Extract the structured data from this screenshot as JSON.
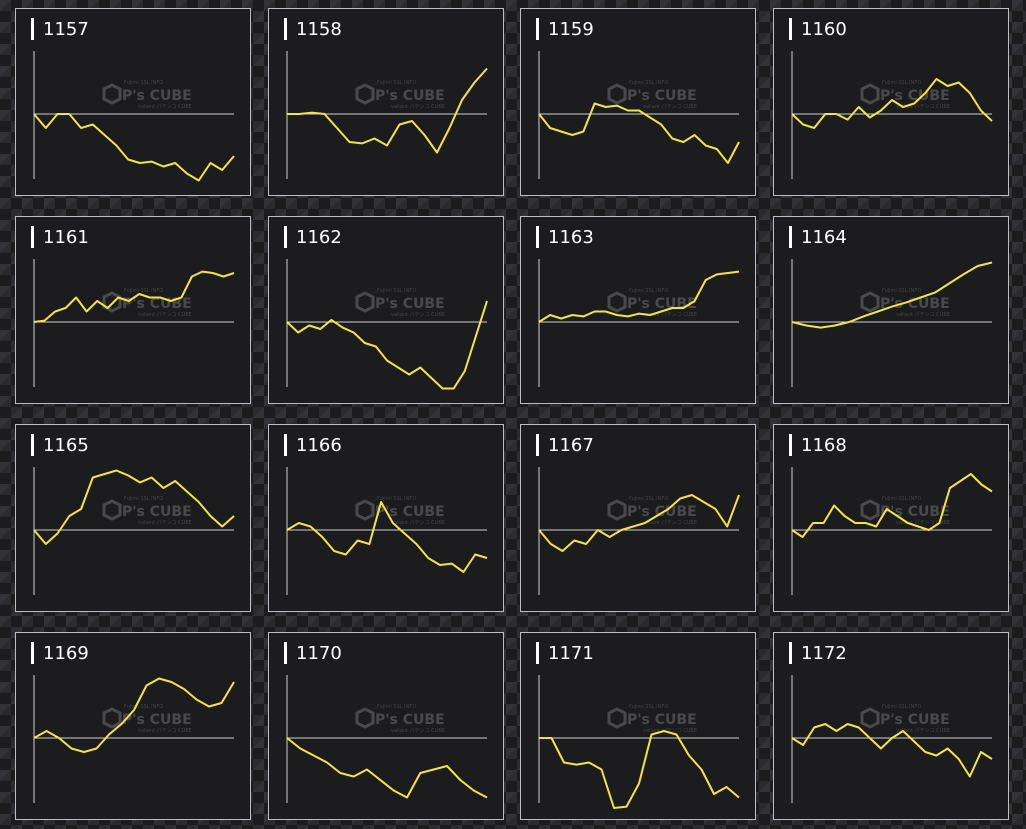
{
  "colors": {
    "line": "#f2e34d",
    "axis": "#cfcfcf",
    "panel_bg": "#1c1c1e",
    "panel_border": "#bdbdbd"
  },
  "watermark": {
    "brand": "P's CUBE",
    "tagline_top": "Fujimi SSL INFO",
    "tagline_bottom": "valiant パチンコ CUBE"
  },
  "chart_data": [
    {
      "type": "line",
      "title": "1157",
      "baseline": 0,
      "ylim": [
        -100,
        100
      ],
      "values": [
        0,
        -20,
        0,
        0,
        -20,
        -15,
        -30,
        -45,
        -65,
        -70,
        -68,
        -75,
        -70,
        -85,
        -95,
        -70,
        -80,
        -60
      ]
    },
    {
      "type": "line",
      "title": "1158",
      "baseline": 0,
      "ylim": [
        -100,
        100
      ],
      "values": [
        0,
        0,
        2,
        0,
        -20,
        -40,
        -42,
        -35,
        -45,
        -15,
        -10,
        -30,
        -55,
        -20,
        20,
        45,
        65
      ]
    },
    {
      "type": "line",
      "title": "1159",
      "baseline": 0,
      "ylim": [
        -100,
        100
      ],
      "values": [
        0,
        -20,
        -25,
        -30,
        -25,
        15,
        10,
        12,
        5,
        5,
        -5,
        -15,
        -35,
        -40,
        -30,
        -45,
        -50,
        -70,
        -40
      ]
    },
    {
      "type": "line",
      "title": "1160",
      "baseline": 0,
      "ylim": [
        -100,
        100
      ],
      "values": [
        0,
        -15,
        -20,
        0,
        0,
        -8,
        10,
        -5,
        5,
        20,
        10,
        15,
        30,
        50,
        40,
        45,
        30,
        5,
        -10
      ]
    },
    {
      "type": "line",
      "title": "1161",
      "baseline": 0,
      "ylim": [
        -100,
        100
      ],
      "values": [
        0,
        2,
        15,
        20,
        35,
        15,
        30,
        20,
        35,
        30,
        40,
        35,
        35,
        30,
        35,
        65,
        72,
        70,
        65,
        70
      ]
    },
    {
      "type": "line",
      "title": "1162",
      "baseline": 0,
      "ylim": [
        -100,
        100
      ],
      "values": [
        0,
        -15,
        -5,
        -10,
        3,
        -8,
        -15,
        -30,
        -35,
        -55,
        -65,
        -75,
        -65,
        -80,
        -95,
        -95,
        -70,
        -20,
        30
      ]
    },
    {
      "type": "line",
      "title": "1163",
      "baseline": 0,
      "ylim": [
        -100,
        100
      ],
      "values": [
        0,
        10,
        5,
        10,
        8,
        15,
        15,
        10,
        8,
        12,
        10,
        15,
        20,
        20,
        30,
        60,
        68,
        70,
        72
      ]
    },
    {
      "type": "line",
      "title": "1164",
      "baseline": 0,
      "ylim": [
        -100,
        100
      ],
      "values": [
        0,
        -5,
        -8,
        -5,
        0,
        8,
        15,
        22,
        28,
        35,
        42,
        55,
        68,
        80,
        85
      ]
    },
    {
      "type": "line",
      "title": "1165",
      "baseline": 0,
      "ylim": [
        -100,
        100
      ],
      "values": [
        0,
        -20,
        -5,
        20,
        30,
        75,
        80,
        85,
        78,
        68,
        75,
        60,
        70,
        55,
        40,
        20,
        5,
        20
      ]
    },
    {
      "type": "line",
      "title": "1166",
      "baseline": 0,
      "ylim": [
        -100,
        100
      ],
      "values": [
        0,
        10,
        5,
        -10,
        -30,
        -35,
        -15,
        -20,
        40,
        10,
        -5,
        -20,
        -40,
        -50,
        -48,
        -60,
        -35,
        -40
      ]
    },
    {
      "type": "line",
      "title": "1167",
      "baseline": 0,
      "ylim": [
        -100,
        100
      ],
      "values": [
        0,
        -20,
        -30,
        -15,
        -20,
        0,
        -10,
        0,
        5,
        10,
        20,
        30,
        45,
        50,
        40,
        30,
        5,
        50
      ]
    },
    {
      "type": "line",
      "title": "1168",
      "baseline": 0,
      "ylim": [
        -100,
        100
      ],
      "values": [
        0,
        -10,
        10,
        10,
        35,
        20,
        10,
        10,
        5,
        30,
        20,
        10,
        5,
        0,
        10,
        60,
        70,
        80,
        65,
        55
      ]
    },
    {
      "type": "line",
      "title": "1169",
      "baseline": 0,
      "ylim": [
        -100,
        100
      ],
      "values": [
        0,
        10,
        0,
        -15,
        -20,
        -15,
        5,
        20,
        40,
        75,
        85,
        80,
        70,
        55,
        45,
        50,
        80
      ]
    },
    {
      "type": "line",
      "title": "1170",
      "baseline": 0,
      "ylim": [
        -100,
        100
      ],
      "values": [
        0,
        -15,
        -25,
        -35,
        -50,
        -55,
        -45,
        -60,
        -75,
        -85,
        -50,
        -45,
        -40,
        -60,
        -75,
        -85
      ]
    },
    {
      "type": "line",
      "title": "1171",
      "baseline": 0,
      "ylim": [
        -100,
        100
      ],
      "values": [
        0,
        0,
        -35,
        -38,
        -35,
        -45,
        -100,
        -98,
        -65,
        5,
        10,
        5,
        -25,
        -45,
        -80,
        -70,
        -85
      ]
    },
    {
      "type": "line",
      "title": "1172",
      "baseline": 0,
      "ylim": [
        -100,
        100
      ],
      "values": [
        0,
        -10,
        15,
        20,
        10,
        20,
        15,
        0,
        -15,
        0,
        10,
        -5,
        -20,
        -25,
        -15,
        -30,
        -55,
        -20,
        -30
      ]
    }
  ]
}
